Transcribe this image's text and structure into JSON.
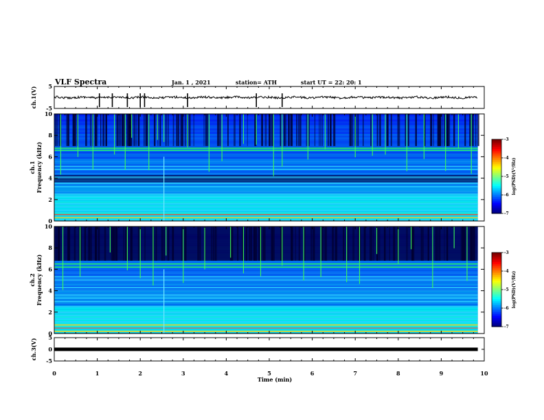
{
  "header": {
    "title": "VLF Spectra",
    "date": "Jan. 1 , 2021",
    "station": "station= ATH",
    "start": "start UT = 22: 20: 1"
  },
  "chart_data": [
    {
      "type": "line",
      "panel": "ch.1 time series",
      "ylabel": "ch.1(V)",
      "ylim": [
        -5,
        5
      ],
      "yticks": [
        "5",
        "-5"
      ],
      "xlim": [
        0,
        10
      ],
      "baseline_value": 0,
      "data_end_min": 9.85,
      "spike_times_min": [
        1.05,
        1.35,
        1.7,
        2.0,
        2.1,
        3.1,
        4.7,
        5.3
      ]
    },
    {
      "type": "heatmap",
      "panel": "ch.1 spectrogram",
      "ylabel": "ch.1",
      "ylabel2": "Frequency (kHz)",
      "ylim": [
        0,
        10
      ],
      "yticks": [
        "0",
        "2",
        "4",
        "6",
        "8",
        "10"
      ],
      "xlim": [
        0,
        10
      ],
      "data_end_min": 9.85,
      "colorscale": "jet",
      "colorbar_label": "log(PSD)(V²/Hz)",
      "colorbar_ticks": [
        "-3",
        "-4",
        "-5",
        "-6",
        "-7"
      ],
      "colorbar_range": [
        -7,
        -3
      ],
      "band_lines_khz": [
        0.3,
        0.6,
        1.0,
        1.3,
        1.6,
        2.0,
        2.3,
        2.5,
        3.2,
        3.5,
        4.1,
        4.8,
        5.1,
        6.6,
        6.8
      ],
      "dark_band_khz": [
        3.6,
        4.3
      ],
      "sferic_times_min": [
        0.15,
        0.55,
        0.9,
        1.4,
        1.65,
        1.8,
        2.2,
        2.4,
        2.55,
        3.1,
        3.6,
        3.9,
        4.4,
        4.7,
        5.1,
        5.3,
        5.9,
        6.3,
        7.0,
        7.4,
        7.7,
        8.2,
        8.6,
        9.1,
        9.4,
        9.7
      ],
      "whistler_time_min": 2.55
    },
    {
      "type": "heatmap",
      "panel": "ch.2 spectrogram",
      "ylabel": "ch.2",
      "ylabel2": "Frequency (kHz)",
      "ylim": [
        0,
        10
      ],
      "yticks": [
        "0",
        "2",
        "4",
        "6",
        "8",
        "10"
      ],
      "xlim": [
        0,
        10
      ],
      "data_end_min": 9.85,
      "colorscale": "jet",
      "colorbar_label": "log(PSD)(V²/Hz)",
      "colorbar_ticks": [
        "-3",
        "-4",
        "-5",
        "-6",
        "-7"
      ],
      "colorbar_range": [
        -7,
        -3
      ],
      "band_lines_khz": [
        0.2,
        0.5,
        0.8,
        1.1,
        1.4,
        1.7,
        2.0,
        2.5,
        3.0,
        3.3,
        3.6,
        4.3,
        5.0,
        5.3,
        6.2,
        6.5
      ],
      "dark_band_khz": [
        6.8,
        10.0
      ],
      "sferic_times_min": [
        0.2,
        0.6,
        1.3,
        1.7,
        2.0,
        2.3,
        2.6,
        3.0,
        3.5,
        4.1,
        4.4,
        4.8,
        5.3,
        5.8,
        6.2,
        6.8,
        7.1,
        7.5,
        8.0,
        8.3,
        8.8,
        9.3,
        9.6
      ],
      "whistler_time_min": 2.55
    },
    {
      "type": "line",
      "panel": "ch.3 time series",
      "ylabel": "ch.3(V)",
      "ylim": [
        -5,
        5
      ],
      "yticks": [
        "5",
        "0",
        "-5"
      ],
      "xlim": [
        0,
        10
      ],
      "level_value": 0,
      "data_end_min": 9.85
    }
  ],
  "x_axis": {
    "label": "Time (min)",
    "ticks": [
      "0",
      "1",
      "2",
      "3",
      "4",
      "5",
      "6",
      "7",
      "8",
      "9",
      "10"
    ]
  },
  "colors": {
    "background": "#ffffff",
    "frame": "#000000",
    "trace": "#000000"
  }
}
